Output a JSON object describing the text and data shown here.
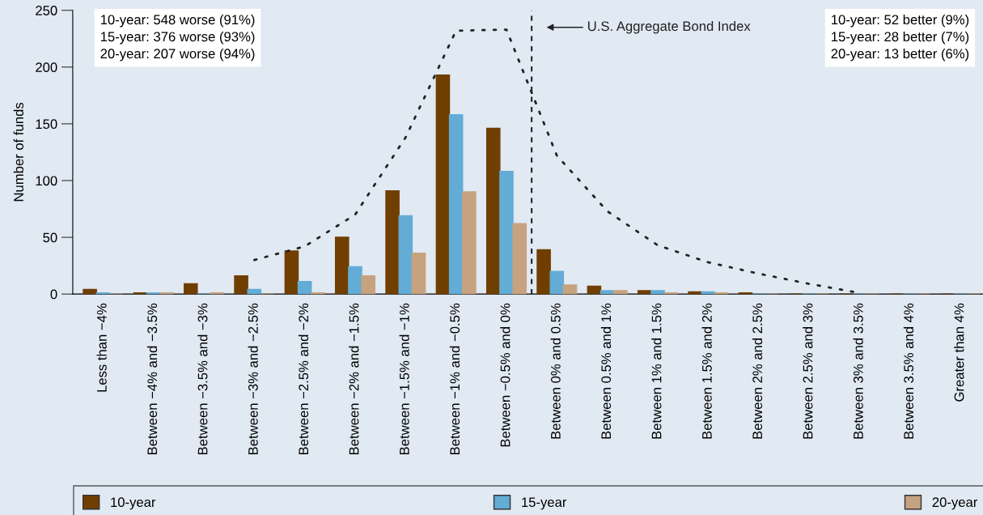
{
  "chart_data": {
    "type": "bar",
    "ylabel": "Number of funds",
    "categories": [
      "Less than −4%",
      "Between −4% and −3.5%",
      "Between −3.5% and −3%",
      "Between −3% and −2.5%",
      "Between −2.5% and −2%",
      "Between −2% and −1.5%",
      "Between −1.5% and −1%",
      "Between −1% and −0.5%",
      "Between −0.5% and 0%",
      "Between 0% and 0.5%",
      "Between 0.5% and 1%",
      "Between 1% and 1.5%",
      "Between 1.5% and 2%",
      "Between 2% and 2.5%",
      "Between 2.5% and 3%",
      "Between 3% and 3.5%",
      "Between 3.5% and 4%",
      "Greater than 4%"
    ],
    "series": [
      {
        "name": "10-year",
        "color": "#703f00",
        "values": [
          4,
          1,
          9,
          16,
          38,
          50,
          91,
          193,
          146,
          39,
          7,
          3,
          2,
          1,
          0,
          0,
          0,
          0
        ]
      },
      {
        "name": "15-year",
        "color": "#62acd6",
        "values": [
          1,
          1,
          0,
          4,
          11,
          24,
          69,
          158,
          108,
          20,
          3,
          3,
          2,
          0,
          0,
          0,
          0,
          0
        ]
      },
      {
        "name": "20-year",
        "color": "#c6a27f",
        "values": [
          0,
          1,
          1,
          0,
          1,
          16,
          36,
          90,
          62,
          8,
          3,
          1,
          1,
          0,
          0,
          0,
          0,
          0
        ]
      },
      {
        "type": "line",
        "color": "#222222",
        "line_style": "dotted",
        "values": [
          null,
          null,
          null,
          30,
          42,
          70,
          138,
          232,
          233,
          122,
          73,
          43,
          28,
          18,
          9,
          1,
          null,
          null
        ]
      }
    ],
    "ylim": [
      0,
      250
    ],
    "yticks": [
      0,
      50,
      100,
      150,
      200,
      250
    ],
    "grid": false,
    "legend": "bottom",
    "annotations": [
      "10-year: 548 worse (91%)\n15-year: 376 worse (93%)\n20-year: 207 worse (94%)",
      "10-year: 52 better (9%)\n15-year: 28 better (7%)\n20-year: 13 better (6%)",
      "U.S. Aggregate Bond Index"
    ]
  }
}
